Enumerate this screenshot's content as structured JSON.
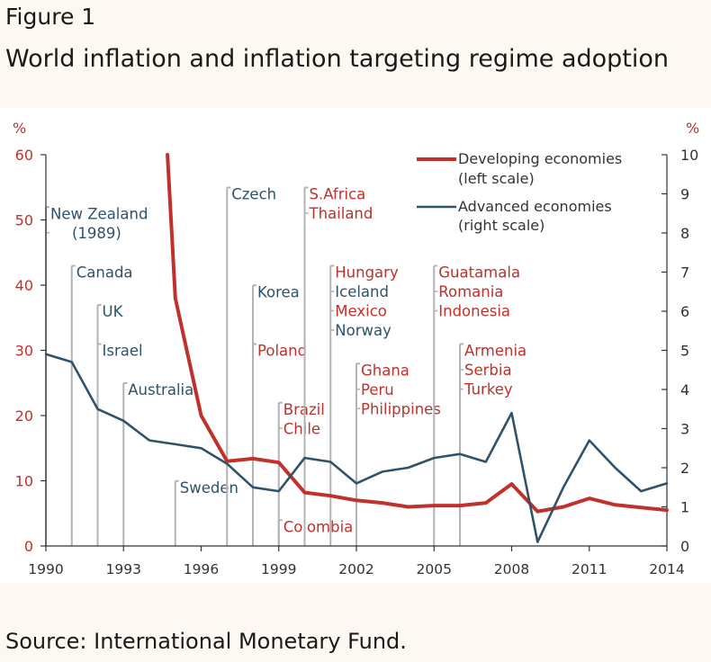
{
  "figure_label": "Figure 1",
  "title": "World inflation and inflation targeting regime adoption",
  "source": "Source: International Monetary Fund.",
  "colors": {
    "developing": "#c0312b",
    "advanced": "#2f5369",
    "event_line": "#b3b3b3",
    "axis": "#333333",
    "unit": "#c0312b"
  },
  "chart_data": {
    "type": "line",
    "left_unit": "%",
    "right_unit": "%",
    "x_ticks": [
      1990,
      1993,
      1996,
      1999,
      2002,
      2005,
      2008,
      2011,
      2014
    ],
    "xlim": [
      1990,
      2014
    ],
    "ylim_left": [
      0,
      60
    ],
    "left_ticks": [
      0,
      10,
      20,
      30,
      40,
      50,
      60
    ],
    "ylim_right": [
      0,
      10
    ],
    "right_ticks": [
      0,
      1,
      2,
      3,
      4,
      5,
      6,
      7,
      8,
      9,
      10
    ],
    "legend_position": "top-right",
    "series": [
      {
        "name": "Developing economies",
        "name_line2": "(left scale)",
        "axis": "left",
        "x": [
          1995,
          1996,
          1997,
          1998,
          1999,
          2000,
          2001,
          2002,
          2003,
          2004,
          2005,
          2006,
          2007,
          2008,
          2009,
          2010,
          2011,
          2012,
          2013,
          2014
        ],
        "values": [
          38,
          20,
          13,
          13.4,
          12.8,
          8.2,
          7.7,
          7.0,
          6.6,
          6.0,
          6.2,
          6.2,
          6.6,
          9.5,
          5.3,
          6.0,
          7.3,
          6.3,
          5.9,
          5.5
        ],
        "lead_in": {
          "x": [
            1994.7,
            1995
          ],
          "values": [
            60,
            38
          ]
        }
      },
      {
        "name": "Advanced economies",
        "name_line2": "(right scale)",
        "axis": "right",
        "x": [
          1990,
          1991,
          1992,
          1993,
          1994,
          1995,
          1996,
          1997,
          1998,
          1999,
          2000,
          2001,
          2002,
          2003,
          2004,
          2005,
          2006,
          2007,
          2008,
          2009,
          2010,
          2011,
          2012,
          2013,
          2014
        ],
        "values": [
          4.9,
          4.7,
          3.5,
          3.2,
          2.7,
          2.6,
          2.5,
          2.1,
          1.5,
          1.4,
          2.25,
          2.15,
          1.6,
          1.9,
          2.0,
          2.25,
          2.35,
          2.15,
          3.4,
          0.1,
          1.5,
          2.7,
          2.0,
          1.4,
          1.6
        ]
      }
    ],
    "adoptions": [
      {
        "year": 1990,
        "top": 51,
        "labels": [
          {
            "text": "New Zealand",
            "group": "advanced"
          },
          {
            "text": "(1989)",
            "group": "advanced",
            "indent": true
          }
        ]
      },
      {
        "year": 1991,
        "top": 42,
        "labels": [
          {
            "text": "Canada",
            "group": "advanced"
          }
        ]
      },
      {
        "year": 1992,
        "top": 36,
        "labels": [
          {
            "text": "UK",
            "group": "advanced"
          }
        ]
      },
      {
        "year": 1992,
        "top": 30,
        "labels": [
          {
            "text": "Israel",
            "group": "advanced"
          }
        ]
      },
      {
        "year": 1993,
        "top": 24,
        "labels": [
          {
            "text": "Australia",
            "group": "advanced"
          }
        ]
      },
      {
        "year": 1995,
        "top": 9,
        "labels": [
          {
            "text": "Sweden",
            "group": "advanced"
          }
        ]
      },
      {
        "year": 1997,
        "top": 54,
        "labels": [
          {
            "text": "Czech",
            "group": "advanced"
          }
        ]
      },
      {
        "year": 1998,
        "top": 39,
        "labels": [
          {
            "text": "Korea",
            "group": "advanced"
          }
        ]
      },
      {
        "year": 1998,
        "top": 30,
        "labels": [
          {
            "text": "Poland",
            "group": "developing"
          }
        ]
      },
      {
        "year": 1999,
        "top": 21,
        "labels": [
          {
            "text": "Brazil",
            "group": "developing"
          },
          {
            "text": "Chile",
            "group": "developing"
          }
        ]
      },
      {
        "year": 1999,
        "top": 3,
        "labels": [
          {
            "text": "Colombia",
            "group": "developing"
          }
        ]
      },
      {
        "year": 2000,
        "top": 54,
        "labels": [
          {
            "text": "S.Africa",
            "group": "developing"
          },
          {
            "text": "Thailand",
            "group": "developing"
          }
        ]
      },
      {
        "year": 2001,
        "top": 42,
        "labels": [
          {
            "text": "Hungary",
            "group": "developing"
          },
          {
            "text": "Iceland",
            "group": "advanced"
          },
          {
            "text": "Mexico",
            "group": "developing"
          },
          {
            "text": "Norway",
            "group": "advanced"
          }
        ]
      },
      {
        "year": 2002,
        "top": 27,
        "labels": [
          {
            "text": "Ghana",
            "group": "developing"
          },
          {
            "text": "Peru",
            "group": "developing"
          },
          {
            "text": "Philippines",
            "group": "developing"
          }
        ]
      },
      {
        "year": 2005,
        "top": 42,
        "labels": [
          {
            "text": "Guatamala",
            "group": "developing"
          },
          {
            "text": "Romania",
            "group": "developing"
          },
          {
            "text": "Indonesia",
            "group": "developing"
          }
        ]
      },
      {
        "year": 2006,
        "top": 30,
        "labels": [
          {
            "text": "Armenia",
            "group": "developing"
          },
          {
            "text": "Serbia",
            "group": "developing"
          },
          {
            "text": "Turkey",
            "group": "developing"
          }
        ]
      }
    ]
  }
}
